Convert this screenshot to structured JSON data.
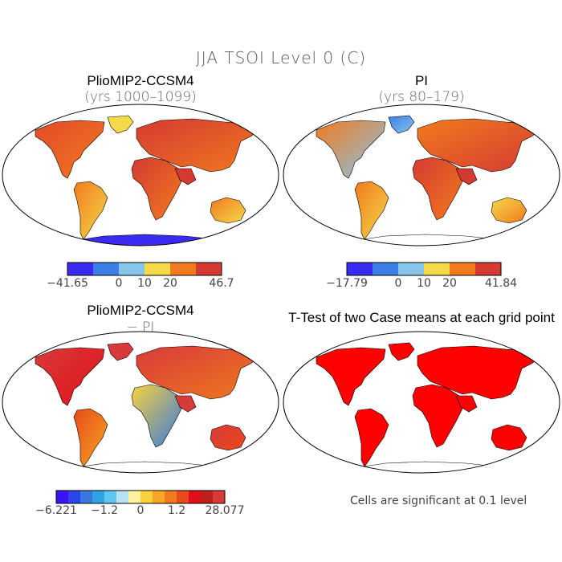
{
  "figure": {
    "title": "JJA TSOI Level 0 (C)",
    "footnote": "Cells are significant at 0.1 level"
  },
  "panels": [
    {
      "id": "p1",
      "title": "PlioMIP2-CCSM4",
      "subtitle": "(yrs 1000–1099)",
      "colorbar": {
        "colors": [
          "#3b2bf0",
          "#3a7ee6",
          "#87c5ea",
          "#f4d94a",
          "#f27a1e",
          "#d43a32"
        ],
        "labels": [
          "−41.65",
          "0",
          "10",
          "20",
          "46.7"
        ]
      }
    },
    {
      "id": "p2",
      "title": "PI",
      "subtitle": "(yrs 80–179)",
      "colorbar": {
        "colors": [
          "#3b2bf0",
          "#3a7ee6",
          "#87c5ea",
          "#f4d94a",
          "#f27a1e",
          "#d43a32"
        ],
        "labels": [
          "−17.79",
          "0",
          "10",
          "20",
          "41.84"
        ]
      }
    },
    {
      "id": "p3",
      "title": "PlioMIP2-CCSM4",
      "subtitle": "− PI",
      "colorbar": {
        "colors": [
          "#3b13f5",
          "#2c45e8",
          "#3a78e0",
          "#2ea3e8",
          "#5cc7f0",
          "#b8e2f2",
          "#fff2a0",
          "#f7d23c",
          "#f6a623",
          "#f07a1e",
          "#e84a1a",
          "#e0101a",
          "#c0201c",
          "#d83a3a"
        ],
        "labels": [
          "−6.221",
          "−1.2",
          "0",
          "1.2",
          "28.077"
        ]
      }
    },
    {
      "id": "p4",
      "title": "T-Test of two Case means at each grid point",
      "subtitle": ""
    }
  ]
}
